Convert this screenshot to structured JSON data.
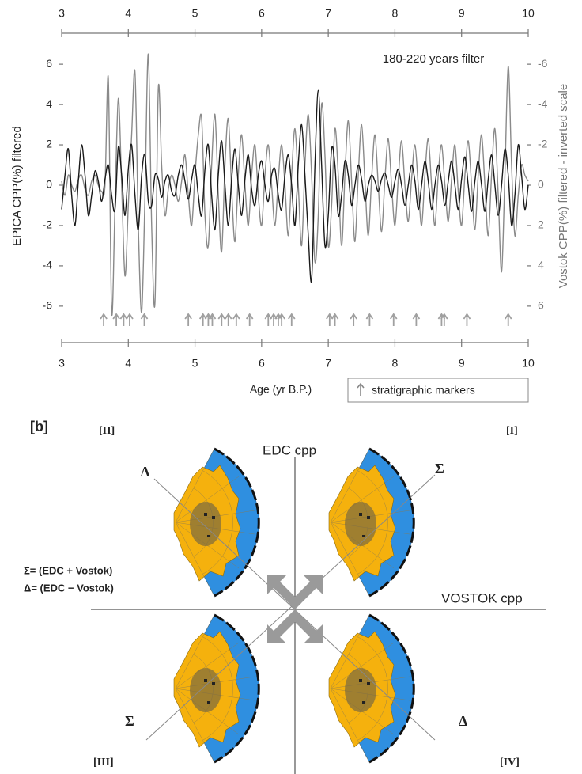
{
  "chart_data": {
    "type": "line",
    "annotation": "180-220 years filter",
    "x_label": "Age (yr B.P.)",
    "y_label": "EPICA CPP(%)  filtered",
    "y2_label": "Vostok CPP(%)  filtered - inverted scale",
    "xlim": [
      3,
      10
    ],
    "xticks": [
      3,
      4,
      5,
      6,
      7,
      8,
      9,
      10
    ],
    "ylim": [
      -7.3,
      7.3
    ],
    "yticks": [
      -6,
      -4,
      -2,
      0,
      2,
      4,
      6
    ],
    "y2lim": [
      7.3,
      -7.3
    ],
    "y2ticks": [
      -6,
      -4,
      -2,
      0,
      2,
      4,
      6
    ],
    "x": [
      3.0,
      3.05,
      3.1,
      3.15,
      3.2,
      3.25,
      3.3,
      3.35,
      3.4,
      3.45,
      3.5,
      3.55,
      3.6,
      3.65,
      3.7,
      3.75,
      3.8,
      3.85,
      3.9,
      3.95,
      4.0,
      4.05,
      4.1,
      4.15,
      4.2,
      4.25,
      4.3,
      4.35,
      4.4,
      4.45,
      4.5,
      4.55,
      4.6,
      4.65,
      4.7,
      4.75,
      4.8,
      4.85,
      4.9,
      4.95,
      5.0,
      5.05,
      5.1,
      5.15,
      5.2,
      5.25,
      5.3,
      5.35,
      5.4,
      5.45,
      5.5,
      5.55,
      5.6,
      5.65,
      5.7,
      5.75,
      5.8,
      5.85,
      5.9,
      5.95,
      6.0,
      6.05,
      6.1,
      6.15,
      6.2,
      6.25,
      6.3,
      6.35,
      6.4,
      6.45,
      6.5,
      6.55,
      6.6,
      6.65,
      6.7,
      6.75,
      6.8,
      6.85,
      6.9,
      6.95,
      7.0,
      7.05,
      7.1,
      7.15,
      7.2,
      7.25,
      7.3,
      7.35,
      7.4,
      7.45,
      7.5,
      7.55,
      7.6,
      7.65,
      7.7,
      7.75,
      7.8,
      7.85,
      7.9,
      7.95,
      8.0,
      8.05,
      8.1,
      8.15,
      8.2,
      8.25,
      8.3,
      8.35,
      8.4,
      8.45,
      8.5,
      8.55,
      8.6,
      8.65,
      8.7,
      8.75,
      8.8,
      8.85,
      8.9,
      8.95,
      9.0,
      9.05,
      9.1,
      9.15,
      9.2,
      9.25,
      9.3,
      9.35,
      9.4,
      9.45,
      9.5,
      9.55,
      9.6,
      9.65,
      9.7,
      9.75,
      9.8,
      9.85,
      9.9,
      9.95,
      10.0
    ],
    "series": [
      {
        "color": "#8a8a8a",
        "axis": "y2",
        "values": [
          -0.2,
          0.5,
          -0.5,
          0.0,
          0.3,
          -0.3,
          -0.5,
          0.2,
          0.5,
          -0.2,
          -0.5,
          0.0,
          0.3,
          0.0,
          -5.3,
          6.3,
          1.0,
          -4.3,
          0.0,
          4.5,
          1.0,
          -2.5,
          -5.6,
          2.0,
          6.3,
          0.5,
          -6.5,
          2.0,
          5.8,
          -4.8,
          -1.0,
          1.5,
          0.2,
          -0.5,
          0.0,
          0.8,
          -0.2,
          -1.5,
          0.5,
          2.0,
          -0.5,
          -2.5,
          -3.3,
          1.5,
          3.0,
          -1.0,
          -3.5,
          0.5,
          3.3,
          -1.0,
          -3.3,
          0.2,
          2.8,
          -0.5,
          -2.5,
          0.0,
          2.0,
          -0.5,
          -2.0,
          0.5,
          2.0,
          -0.5,
          -2.0,
          0.0,
          2.0,
          -0.3,
          -2.0,
          0.0,
          2.5,
          -0.5,
          -2.8,
          0.0,
          3.0,
          -1.0,
          -3.5,
          -0.5,
          3.8,
          1.5,
          -4.0,
          -1.5,
          3.0,
          1.0,
          -2.8,
          -0.5,
          3.0,
          -0.5,
          -3.2,
          -0.2,
          2.8,
          -0.5,
          -3.0,
          -0.2,
          2.5,
          -0.3,
          -2.5,
          0.0,
          2.3,
          -0.3,
          -2.3,
          0.0,
          2.0,
          -0.3,
          -2.2,
          0.0,
          1.8,
          -0.3,
          -2.0,
          0.0,
          2.0,
          -0.5,
          -2.3,
          0.0,
          2.0,
          -0.5,
          -2.0,
          0.0,
          1.8,
          -0.3,
          -2.0,
          0.3,
          2.0,
          -0.5,
          -2.2,
          0.0,
          2.2,
          -0.5,
          -2.5,
          0.0,
          2.5,
          -0.5,
          -2.8,
          0.5,
          4.3,
          -0.5,
          -5.9,
          -1.0,
          2.5,
          0.5,
          -1.0,
          -0.5,
          -0.2
        ]
      },
      {
        "color": "#1a1a1a",
        "values": [
          -1.2,
          0.5,
          1.8,
          -0.5,
          -2.0,
          0.2,
          2.0,
          0.5,
          -1.5,
          -0.5,
          0.7,
          0.2,
          -0.8,
          0.3,
          1.0,
          -0.5,
          -1.2,
          1.9,
          0.5,
          -1.5,
          0.8,
          2.0,
          -0.5,
          -2.2,
          0.5,
          1.5,
          -0.8,
          -1.0,
          0.5,
          0.3,
          -0.6,
          0.2,
          0.5,
          -0.3,
          -0.5,
          0.5,
          1.0,
          0.2,
          -0.7,
          0.3,
          1.0,
          -0.5,
          -1.5,
          0.8,
          2.0,
          -0.5,
          -2.2,
          0.5,
          2.2,
          0.0,
          -2.0,
          0.3,
          1.8,
          0.0,
          -1.5,
          0.3,
          1.5,
          -0.2,
          -1.0,
          0.5,
          1.2,
          0.0,
          -0.8,
          0.5,
          0.8,
          -0.5,
          -1.2,
          0.5,
          1.5,
          0.0,
          -2.0,
          1.0,
          3.0,
          0.5,
          -2.5,
          -4.7,
          1.0,
          4.7,
          1.0,
          -3.0,
          -1.5,
          1.8,
          1.0,
          -1.5,
          -0.5,
          1.2,
          0.5,
          -1.0,
          0.0,
          1.0,
          0.3,
          -0.8,
          0.0,
          0.5,
          0.2,
          -0.3,
          0.3,
          0.6,
          0.0,
          -0.6,
          0.2,
          0.8,
          0.0,
          -1.0,
          0.0,
          1.0,
          0.2,
          -1.2,
          0.0,
          1.2,
          0.2,
          -1.2,
          0.0,
          1.0,
          0.2,
          -1.0,
          0.2,
          1.2,
          0.0,
          -1.2,
          0.3,
          1.4,
          0.0,
          -1.3,
          0.2,
          1.2,
          0.0,
          -1.3,
          0.3,
          1.5,
          0.0,
          -1.5,
          0.0,
          1.8,
          0.5,
          -2.0,
          -0.5,
          2.0,
          0.5,
          -1.2,
          0.0
        ]
      }
    ],
    "markers": {
      "name": "stratigraphic markers",
      "color": "#a0a0a0",
      "x": [
        3.63,
        3.82,
        3.93,
        4.02,
        4.24,
        4.9,
        5.12,
        5.2,
        5.26,
        5.4,
        5.5,
        5.62,
        5.82,
        6.1,
        6.18,
        6.25,
        6.3,
        6.45,
        7.02,
        7.1,
        7.38,
        7.62,
        7.98,
        8.32,
        8.7,
        8.74,
        9.08,
        9.7
      ]
    }
  },
  "panel_b": {
    "label": "[b]",
    "quadrants": [
      "[I]",
      "[II]",
      "[III]",
      "[IV]"
    ],
    "vertical_axis": "EDC cpp",
    "horizontal_axis": "VOSTOK cpp",
    "definitions": [
      "Σ= (EDC + Vostok)",
      "Δ= (EDC − Vostok)"
    ],
    "sum_symbol": "Σ",
    "difference_symbol": "Δ"
  }
}
